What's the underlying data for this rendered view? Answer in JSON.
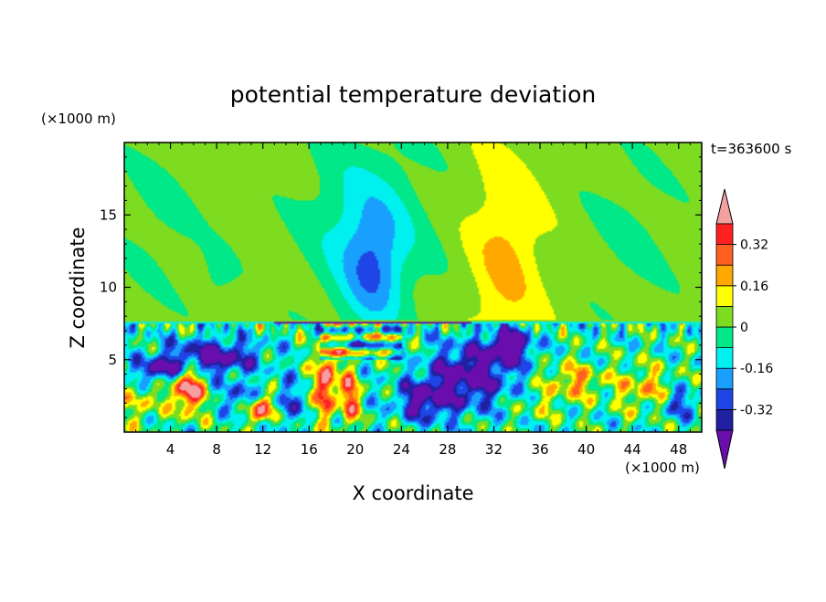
{
  "chart_data": {
    "type": "heatmap",
    "title": "potential temperature deviation",
    "xlabel": "X coordinate",
    "ylabel": "Z coordinate",
    "x_unit": "(×1000 m)",
    "y_unit": "(×1000 m)",
    "time_label": "t=363600 s",
    "xlim": [
      0,
      50
    ],
    "ylim": [
      0,
      20
    ],
    "x_ticks": [
      4,
      8,
      12,
      16,
      20,
      24,
      28,
      32,
      36,
      40,
      44,
      48
    ],
    "y_ticks": [
      5,
      10,
      15
    ],
    "grid": false,
    "colorbar": {
      "levels": [
        -0.48,
        -0.4,
        -0.32,
        -0.24,
        -0.16,
        -0.08,
        0,
        0.08,
        0.16,
        0.24,
        0.32,
        0.4
      ],
      "labels": [
        "0.32",
        "0.16",
        "0",
        "-0.16",
        "-0.32"
      ],
      "label_values": [
        0.32,
        0.16,
        0,
        -0.16,
        -0.32
      ],
      "colors": [
        "#6a0dad",
        "#2020a0",
        "#1f45e6",
        "#19a0ff",
        "#00f0f0",
        "#00e887",
        "#7ddc1f",
        "#ffff00",
        "#ffa800",
        "#ff6020",
        "#ff2020",
        "#f5a0a0"
      ],
      "min": -0.48,
      "max": 0.48,
      "extend": "both"
    },
    "field": {
      "background": 0.04,
      "upper_features": [
        {
          "x": 3,
          "z": 15,
          "sx": 4,
          "sz": 6,
          "v": -0.05
        },
        {
          "x": 8,
          "z": 10.5,
          "sx": 1.6,
          "sz": 2.2,
          "v": -0.06
        },
        {
          "x": 21,
          "z": 14,
          "sx": 5,
          "sz": 6,
          "v": -0.16
        },
        {
          "x": 21.5,
          "z": 11,
          "sx": 2.4,
          "sz": 4,
          "v": -0.18
        },
        {
          "x": 33,
          "z": 12,
          "sx": 3,
          "sz": 7,
          "v": 0.14
        },
        {
          "x": 44,
          "z": 14,
          "sx": 4,
          "sz": 6,
          "v": -0.05
        }
      ],
      "inversion_height": 7.6,
      "lower_features": [
        {
          "x": 5.5,
          "z": 3,
          "sx": 1.3,
          "sz": 1.6,
          "v": 0.55
        },
        {
          "x": 12,
          "z": 1.6,
          "sx": 1.1,
          "sz": 0.9,
          "v": 0.5
        },
        {
          "x": 17.5,
          "z": 3.5,
          "sx": 0.9,
          "sz": 2.5,
          "v": 0.5
        },
        {
          "x": 19.5,
          "z": 2.4,
          "sx": 0.8,
          "sz": 2.0,
          "v": 0.4
        },
        {
          "x": 7.5,
          "z": 5.2,
          "sx": 4,
          "sz": 1.2,
          "v": -0.42
        },
        {
          "x": 3,
          "z": 4.3,
          "sx": 2,
          "sz": 0.8,
          "v": -0.35
        },
        {
          "x": 30,
          "z": 4,
          "sx": 3.5,
          "sz": 2.2,
          "v": -0.42
        },
        {
          "x": 26,
          "z": 2.2,
          "sx": 2.5,
          "sz": 1.4,
          "v": -0.36
        },
        {
          "x": 33.5,
          "z": 6,
          "sx": 1.8,
          "sz": 1.2,
          "v": -0.46
        },
        {
          "x": 10,
          "z": 2.5,
          "sx": 1.3,
          "sz": 1.0,
          "v": -0.25
        },
        {
          "x": 14,
          "z": 2,
          "sx": 1.0,
          "sz": 1.5,
          "v": -0.28
        },
        {
          "x": 1.5,
          "z": 2,
          "sx": 1.5,
          "sz": 1.5,
          "v": 0.18
        },
        {
          "x": 39,
          "z": 3.5,
          "sx": 2.5,
          "sz": 1.2,
          "v": 0.25
        },
        {
          "x": 45,
          "z": 3,
          "sx": 2.5,
          "sz": 1.5,
          "v": 0.22
        },
        {
          "x": 48,
          "z": 2,
          "sx": 1.5,
          "sz": 1.0,
          "v": -0.25
        },
        {
          "x": 36,
          "z": 1.8,
          "sx": 2,
          "sz": 1.0,
          "v": 0.1
        }
      ]
    }
  }
}
